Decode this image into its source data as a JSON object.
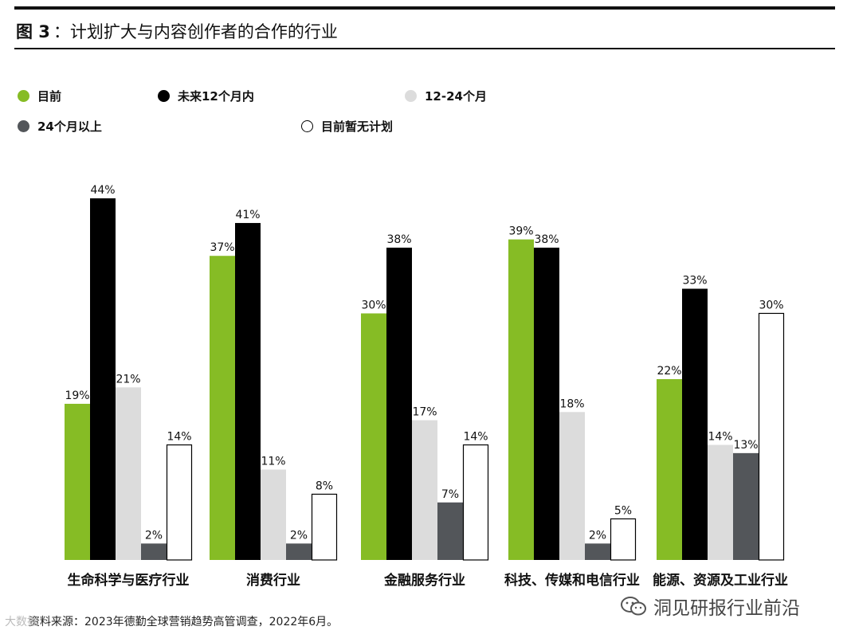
{
  "header": {
    "figure_label": "图 3",
    "title": "：计划扩大与内容创作者的合作的行业"
  },
  "chart_data": {
    "type": "bar",
    "categories": [
      "生命科学与医疗行业",
      "消费行业",
      "金融服务行业",
      "科技、传媒和电信行业",
      "能源、资源及工业行业"
    ],
    "series": [
      {
        "name": "目前",
        "color": "#86bc25",
        "values": [
          19,
          37,
          30,
          39,
          22
        ]
      },
      {
        "name": "未来12个月内",
        "color": "#000000",
        "values": [
          44,
          41,
          38,
          38,
          33
        ]
      },
      {
        "name": "12-24个月",
        "color": "#dcdcdc",
        "values": [
          21,
          11,
          17,
          18,
          14
        ]
      },
      {
        "name": "24个月以上",
        "color": "#53565a",
        "values": [
          2,
          2,
          7,
          2,
          13
        ]
      },
      {
        "name": "目前暂无计划",
        "color": "#ffffff",
        "values": [
          14,
          8,
          14,
          5,
          30
        ]
      }
    ],
    "value_suffix": "%",
    "ylim": [
      0,
      44
    ],
    "grid": false,
    "legend_position": "top-left"
  },
  "footer": {
    "source": "资料来源：2023年德勤全球营销趋势高管调查，2022年6月。",
    "watermark": "洞见研报行业前沿",
    "left_watermark": "大数据"
  }
}
